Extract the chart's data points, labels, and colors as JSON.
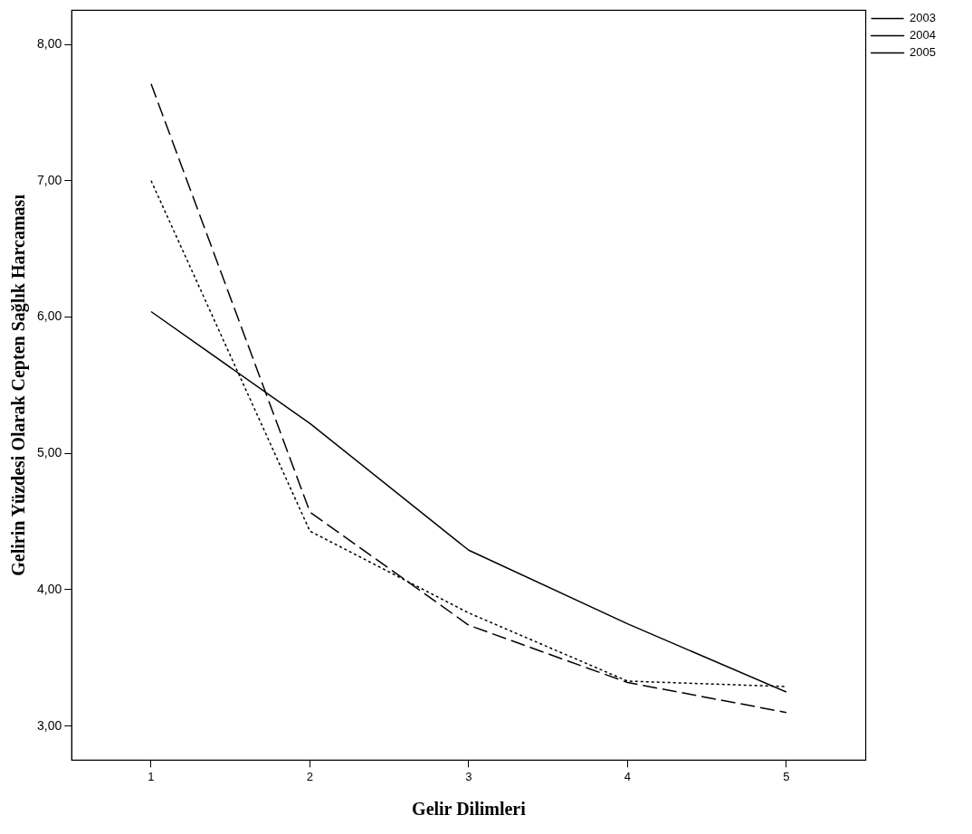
{
  "chart_data": {
    "type": "line",
    "xlabel": "Gelir Dilimleri",
    "ylabel": "Gelirin Yüzdesi Olarak Cepten Sağlık Harcaması",
    "categories": [
      "1",
      "2",
      "3",
      "4",
      "5"
    ],
    "series": [
      {
        "name": "2003",
        "color": "#000000",
        "line_style": "dotted",
        "values": [
          7.0,
          4.43,
          3.83,
          3.33,
          3.29
        ]
      },
      {
        "name": "2004",
        "color": "#000000",
        "line_style": "solid",
        "values": [
          6.04,
          5.22,
          4.29,
          3.75,
          3.25
        ]
      },
      {
        "name": "2005",
        "color": "#000000",
        "line_style": "dashed",
        "values": [
          7.71,
          4.57,
          3.74,
          3.32,
          3.1
        ]
      }
    ],
    "ylim": [
      2.75,
      8.25
    ],
    "yticks": [
      {
        "value": 3,
        "label": "3,00"
      },
      {
        "value": 4,
        "label": "4,00"
      },
      {
        "value": 5,
        "label": "5,00"
      },
      {
        "value": 6,
        "label": "6,00"
      },
      {
        "value": 7,
        "label": "7,00"
      },
      {
        "value": 8,
        "label": "8,00"
      }
    ],
    "grid": false,
    "legend": "top right",
    "marker": "none"
  }
}
